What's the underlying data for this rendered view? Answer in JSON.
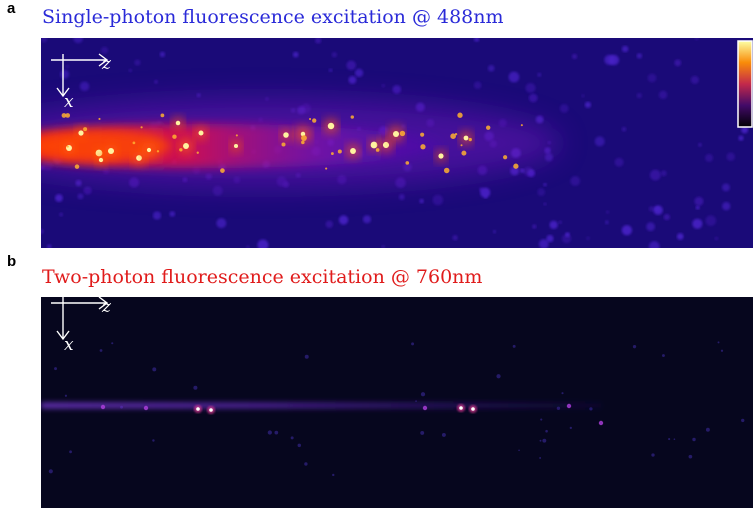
{
  "panel_a": {
    "letter": "a",
    "title": "Single-photon fluorescence excitation @ 488nm",
    "title_color": "#2a2ad8",
    "axes": {
      "horizontal": "z",
      "vertical": "x"
    },
    "colormap": "inferno"
  },
  "panel_b": {
    "letter": "b",
    "title": "Two-photon fluorescence excitation @ 760nm",
    "title_color": "#e01b1b",
    "axes": {
      "horizontal": "z",
      "vertical": "x"
    }
  },
  "colors": {
    "background_a": "#1a0a78",
    "background_b": "#06061e",
    "beam_core": "#ff3a00",
    "hot_spot": "#ffffff"
  }
}
